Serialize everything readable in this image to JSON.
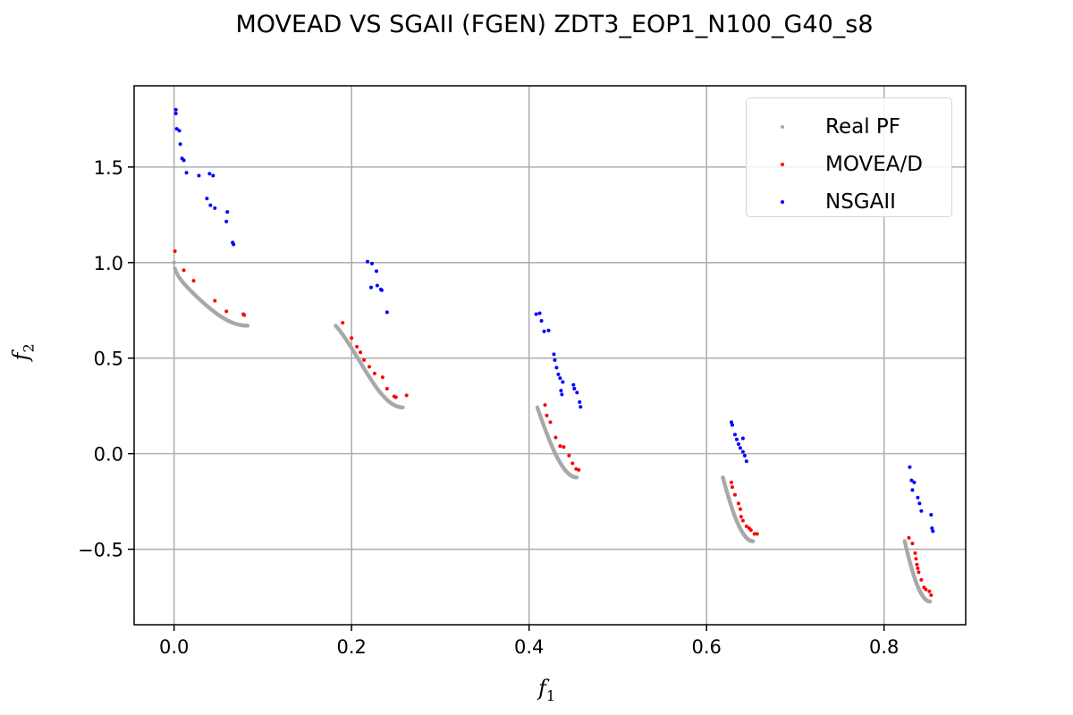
{
  "chart_data": {
    "type": "scatter",
    "title": "MOVEAD VS SGAII (FGEN) ZDT3_EOP1_N100_G40_s8",
    "xlabel": "f1",
    "ylabel": "f2",
    "xlim": [
      -0.045,
      0.892
    ],
    "ylim": [
      -0.895,
      1.925
    ],
    "x_ticks": [
      0.0,
      0.2,
      0.4,
      0.6,
      0.8
    ],
    "x_tick_labels": [
      "0.0",
      "0.2",
      "0.4",
      "0.6",
      "0.8"
    ],
    "y_ticks": [
      -0.5,
      0.0,
      0.5,
      1.0,
      1.5
    ],
    "y_tick_labels": [
      "−0.5",
      "0.0",
      "0.5",
      "1.0",
      "1.5"
    ],
    "grid": true,
    "legend_position": "top-right",
    "series": [
      {
        "name": "Real PF",
        "color": "#a8a8a8",
        "marker_radius": 2.2,
        "dense": true,
        "segments": [
          {
            "x0": 0.0,
            "x1": 0.083
          },
          {
            "x0": 0.1822,
            "x1": 0.2577
          },
          {
            "x0": 0.4093,
            "x1": 0.4538
          },
          {
            "x0": 0.6184,
            "x1": 0.6524
          },
          {
            "x0": 0.8233,
            "x1": 0.8518
          }
        ]
      },
      {
        "name": "MOVEA/D",
        "color": "#ff0000",
        "marker_radius": 2.0,
        "points": [
          [
            0.001,
            1.06
          ],
          [
            0.011,
            0.96
          ],
          [
            0.022,
            0.905
          ],
          [
            0.046,
            0.8
          ],
          [
            0.059,
            0.745
          ],
          [
            0.078,
            0.73
          ],
          [
            0.079,
            0.725
          ],
          [
            0.19,
            0.685
          ],
          [
            0.2,
            0.605
          ],
          [
            0.206,
            0.56
          ],
          [
            0.21,
            0.53
          ],
          [
            0.214,
            0.49
          ],
          [
            0.22,
            0.455
          ],
          [
            0.226,
            0.42
          ],
          [
            0.235,
            0.4
          ],
          [
            0.24,
            0.34
          ],
          [
            0.248,
            0.3
          ],
          [
            0.25,
            0.295
          ],
          [
            0.262,
            0.305
          ],
          [
            0.418,
            0.255
          ],
          [
            0.42,
            0.2
          ],
          [
            0.424,
            0.165
          ],
          [
            0.43,
            0.085
          ],
          [
            0.435,
            0.04
          ],
          [
            0.439,
            0.035
          ],
          [
            0.445,
            -0.01
          ],
          [
            0.449,
            -0.05
          ],
          [
            0.453,
            -0.08
          ],
          [
            0.456,
            -0.085
          ],
          [
            0.628,
            -0.15
          ],
          [
            0.629,
            -0.175
          ],
          [
            0.632,
            -0.215
          ],
          [
            0.636,
            -0.26
          ],
          [
            0.638,
            -0.29
          ],
          [
            0.639,
            -0.33
          ],
          [
            0.641,
            -0.35
          ],
          [
            0.645,
            -0.38
          ],
          [
            0.648,
            -0.39
          ],
          [
            0.65,
            -0.4
          ],
          [
            0.654,
            -0.42
          ],
          [
            0.657,
            -0.42
          ],
          [
            0.828,
            -0.44
          ],
          [
            0.832,
            -0.47
          ],
          [
            0.835,
            -0.52
          ],
          [
            0.836,
            -0.55
          ],
          [
            0.837,
            -0.58
          ],
          [
            0.838,
            -0.6
          ],
          [
            0.839,
            -0.62
          ],
          [
            0.842,
            -0.66
          ],
          [
            0.845,
            -0.7
          ],
          [
            0.847,
            -0.71
          ],
          [
            0.851,
            -0.72
          ],
          [
            0.853,
            -0.74
          ]
        ]
      },
      {
        "name": "NSGAII",
        "color": "#0000ff",
        "marker_radius": 2.0,
        "points": [
          [
            0.002,
            1.8
          ],
          [
            0.002,
            1.78
          ],
          [
            0.003,
            1.7
          ],
          [
            0.006,
            1.69
          ],
          [
            0.007,
            1.62
          ],
          [
            0.009,
            1.545
          ],
          [
            0.011,
            1.535
          ],
          [
            0.014,
            1.47
          ],
          [
            0.028,
            1.455
          ],
          [
            0.04,
            1.465
          ],
          [
            0.044,
            1.455
          ],
          [
            0.037,
            1.335
          ],
          [
            0.041,
            1.3
          ],
          [
            0.046,
            1.285
          ],
          [
            0.06,
            1.265
          ],
          [
            0.059,
            1.215
          ],
          [
            0.066,
            1.105
          ],
          [
            0.067,
            1.095
          ],
          [
            0.218,
            1.005
          ],
          [
            0.223,
            0.995
          ],
          [
            0.228,
            0.955
          ],
          [
            0.222,
            0.87
          ],
          [
            0.229,
            0.88
          ],
          [
            0.233,
            0.86
          ],
          [
            0.234,
            0.855
          ],
          [
            0.24,
            0.74
          ],
          [
            0.408,
            0.73
          ],
          [
            0.412,
            0.735
          ],
          [
            0.414,
            0.695
          ],
          [
            0.417,
            0.64
          ],
          [
            0.422,
            0.645
          ],
          [
            0.428,
            0.52
          ],
          [
            0.429,
            0.49
          ],
          [
            0.431,
            0.45
          ],
          [
            0.433,
            0.415
          ],
          [
            0.435,
            0.395
          ],
          [
            0.438,
            0.375
          ],
          [
            0.436,
            0.33
          ],
          [
            0.437,
            0.31
          ],
          [
            0.45,
            0.36
          ],
          [
            0.451,
            0.34
          ],
          [
            0.454,
            0.32
          ],
          [
            0.457,
            0.27
          ],
          [
            0.458,
            0.245
          ],
          [
            0.628,
            0.165
          ],
          [
            0.629,
            0.15
          ],
          [
            0.632,
            0.1
          ],
          [
            0.634,
            0.075
          ],
          [
            0.636,
            0.05
          ],
          [
            0.638,
            0.03
          ],
          [
            0.641,
            0.01
          ],
          [
            0.641,
            0.08
          ],
          [
            0.643,
            -0.01
          ],
          [
            0.645,
            -0.04
          ],
          [
            0.829,
            -0.07
          ],
          [
            0.831,
            -0.14
          ],
          [
            0.834,
            -0.15
          ],
          [
            0.832,
            -0.19
          ],
          [
            0.838,
            -0.23
          ],
          [
            0.84,
            -0.26
          ],
          [
            0.842,
            -0.3
          ],
          [
            0.853,
            -0.32
          ],
          [
            0.854,
            -0.39
          ],
          [
            0.855,
            -0.405
          ]
        ]
      }
    ]
  }
}
